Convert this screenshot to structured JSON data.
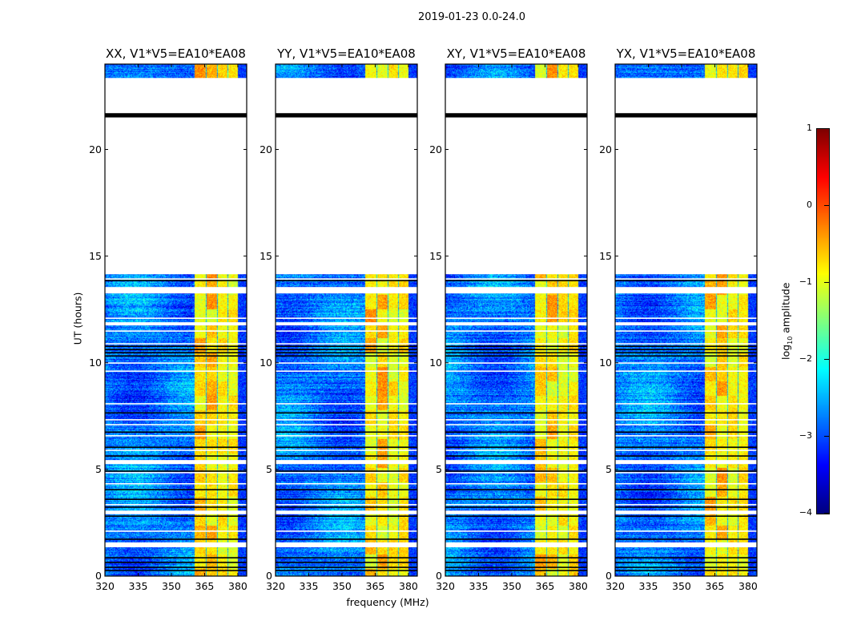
{
  "chart_data": {
    "type": "heatmap",
    "title": "2019-01-23 0.0-24.0",
    "xlabel": "frequency (MHz)",
    "ylabel": "UT (hours)",
    "xlim": [
      320,
      384
    ],
    "ylim": [
      0,
      24
    ],
    "xticks": [
      320,
      335,
      350,
      365,
      380
    ],
    "yticks": [
      0,
      5,
      10,
      15,
      20
    ],
    "panels": [
      {
        "title": "XX, V1*V5=EA10*EA08",
        "seed": 11
      },
      {
        "title": "YY, V1*V5=EA10*EA08",
        "seed": 23
      },
      {
        "title": "XY, V1*V5=EA10*EA08",
        "seed": 37
      },
      {
        "title": "YX, V1*V5=EA10*EA08",
        "seed": 53
      }
    ],
    "colorbar": {
      "label": "log10 amplitude",
      "label_main": "log",
      "label_sub": "10",
      "label_rest": " amplitude",
      "range": [
        -4,
        1
      ],
      "ticks": [
        "1",
        "0",
        "−1",
        "−2",
        "−3",
        "−4"
      ],
      "tick_values": [
        1,
        0,
        -1,
        -2,
        -3,
        -4
      ],
      "colormap": "jet"
    },
    "rfi_band_mhz": [
      360.2,
      379.9
    ],
    "rfi_dark_channels_mhz": [
      365.4,
      370.5,
      375.3
    ],
    "typical_log_amplitude": {
      "background": -2.8,
      "rfi_band": -0.8
    },
    "flagged_ranges_hours": [
      [
        14.15,
        23.35
      ],
      [
        13.25,
        13.55
      ],
      [
        11.75,
        11.9
      ],
      [
        5.25,
        5.44
      ],
      [
        2.9,
        3.07
      ],
      [
        1.35,
        1.58
      ]
    ],
    "flagged_lines_hours": [
      13.92,
      12.08,
      11.48,
      10.88,
      9.98,
      9.6,
      8.07,
      7.32,
      7.09,
      6.57,
      5.89,
      4.84,
      4.32,
      3.34,
      2.1
    ],
    "black_lines_hours": [
      13.85,
      10.77,
      10.62,
      10.47,
      10.32,
      7.65,
      6.75,
      6.04,
      5.63,
      4.92,
      4.05,
      3.6,
      3.23,
      2.81,
      1.73,
      0.86,
      0.64,
      0.41,
      0.26
    ],
    "black_band_hours": [
      21.5,
      21.7
    ]
  }
}
